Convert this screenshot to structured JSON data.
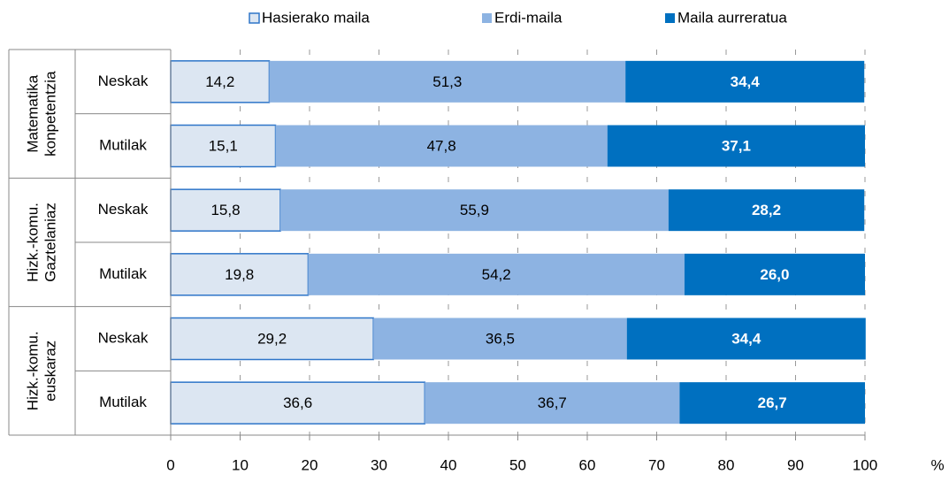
{
  "chart_data": {
    "type": "stacked-bar-horizontal",
    "groups": [
      [
        "Matematika",
        "konpetentzia"
      ],
      [
        "Hizk.-komu.",
        "Gaztelaniaz"
      ],
      [
        "Hizk.-komu.",
        "euskaraz"
      ]
    ],
    "categories": [
      "Neskak",
      "Mutilak",
      "Neskak",
      "Mutilak",
      "Neskak",
      "Mutilak"
    ],
    "series": [
      {
        "name": "Hasierako maila",
        "color": "#dce6f2",
        "edge_color": "#2e75c8",
        "label_color": "#000000",
        "values": [
          14.2,
          15.1,
          15.8,
          19.8,
          29.2,
          36.6
        ],
        "value_labels": [
          "14,2",
          "15,1",
          "15,8",
          "19,8",
          "29,2",
          "36,6"
        ]
      },
      {
        "name": "Erdi-maila",
        "color": "#8db3e2",
        "label_color": "#000000",
        "values": [
          51.3,
          47.8,
          55.9,
          54.2,
          36.5,
          36.7
        ],
        "value_labels": [
          "51,3",
          "47,8",
          "55,9",
          "54,2",
          "36,5",
          "36,7"
        ]
      },
      {
        "name": "Maila aurreratua",
        "color": "#0070c0",
        "label_color": "#ffffff",
        "values": [
          34.4,
          37.1,
          28.2,
          26.0,
          34.4,
          26.7
        ],
        "value_labels": [
          "34,4",
          "37,1",
          "28,2",
          "26,0",
          "34,4",
          "26,7"
        ]
      }
    ],
    "x_label": "%",
    "xlim": [
      0,
      100
    ],
    "xticks": [
      0,
      10,
      20,
      30,
      40,
      50,
      60,
      70,
      80,
      90,
      100
    ],
    "grid": true,
    "legend": "top"
  }
}
